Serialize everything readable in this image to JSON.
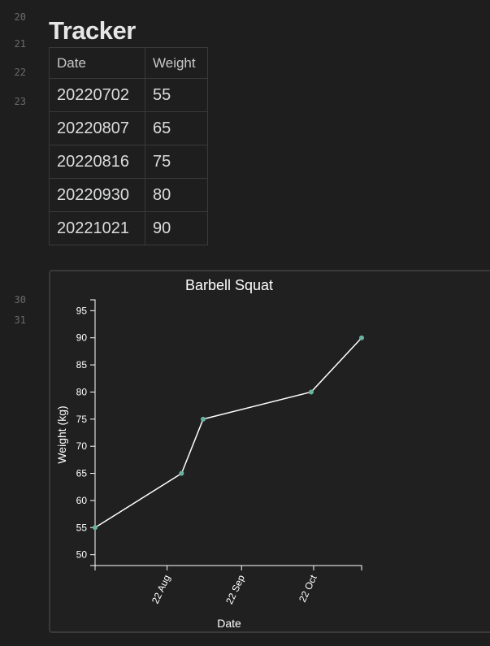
{
  "gutter": {
    "lines": [
      "20",
      "21",
      "22",
      "23",
      "30",
      "31"
    ]
  },
  "page": {
    "heading": "Tracker"
  },
  "table": {
    "headers": [
      "Date",
      "Weight"
    ],
    "rows": [
      [
        "20220702",
        "55"
      ],
      [
        "20220807",
        "65"
      ],
      [
        "20220816",
        "75"
      ],
      [
        "20220930",
        "80"
      ],
      [
        "20221021",
        "90"
      ]
    ]
  },
  "colors": {
    "background": "#1e1e1e",
    "line": "#ffffff",
    "point": "#69b3a2",
    "axis": "#ffffff"
  },
  "chart_data": {
    "type": "line",
    "title": "Barbell Squat",
    "xlabel": "Date",
    "ylabel": "Weight (kg)",
    "x": [
      "2022-07-02",
      "2022-08-07",
      "2022-08-16",
      "2022-09-30",
      "2022-10-21"
    ],
    "values": [
      55,
      65,
      75,
      80,
      90
    ],
    "x_ticks": [
      "22 Aug",
      "22 Sep",
      "22 Oct"
    ],
    "y_ticks": [
      50,
      55,
      60,
      65,
      70,
      75,
      80,
      85,
      90,
      95
    ],
    "ylim": [
      48,
      97
    ],
    "grid": false,
    "legend": "none"
  }
}
